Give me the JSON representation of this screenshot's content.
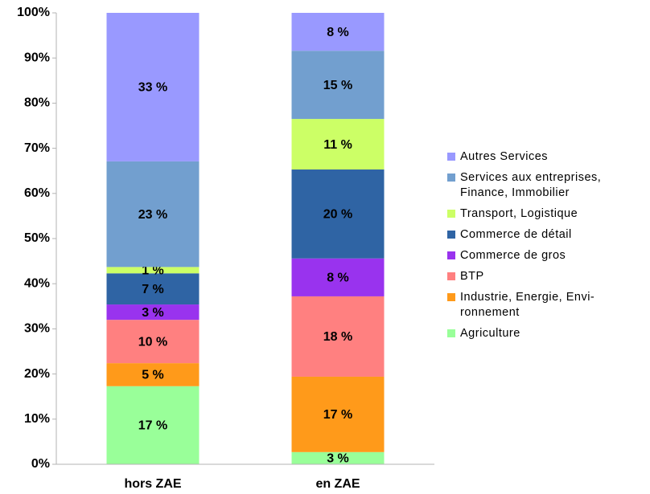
{
  "chart_data": {
    "type": "stacked_bar",
    "categories": [
      "hors ZAE",
      "en ZAE"
    ],
    "series": [
      {
        "name": "Agriculture",
        "color": "#99ff99",
        "values": [
          17.3,
          2.7
        ],
        "value_labels": [
          "17 %",
          "3 %"
        ]
      },
      {
        "name": "Industrie, Energie, Envi-\nronnement",
        "color": "#ff9a1a",
        "values": [
          5.1,
          16.7
        ],
        "value_labels": [
          "5 %",
          "17 %"
        ]
      },
      {
        "name": "BTP",
        "color": "#ff8080",
        "values": [
          9.6,
          17.8
        ],
        "value_labels": [
          "10 %",
          "18 %"
        ]
      },
      {
        "name": "Commerce de gros",
        "color": "#9933ee",
        "values": [
          3.4,
          8.4
        ],
        "value_labels": [
          "3 %",
          "8 %"
        ]
      },
      {
        "name": "Commerce de détail",
        "color": "#2f64a4",
        "values": [
          6.9,
          19.7
        ],
        "value_labels": [
          "7 %",
          "20 %"
        ]
      },
      {
        "name": "Transport, Logistique",
        "color": "#ccff66",
        "values": [
          1.4,
          11.2
        ],
        "value_labels": [
          "1 %",
          "11 %"
        ]
      },
      {
        "name": "Services aux entreprises,\nFinance, Immobilier",
        "color": "#729fcf",
        "values": [
          23.4,
          15.1
        ],
        "value_labels": [
          "23 %",
          "15 %"
        ]
      },
      {
        "name": "Autres Services",
        "color": "#9999ff",
        "values": [
          32.9,
          8.4
        ],
        "value_labels": [
          "33 %",
          "8 %"
        ]
      }
    ],
    "ylim": [
      0,
      100
    ],
    "yticks": [
      {
        "value": 0,
        "label": "0%"
      },
      {
        "value": 10,
        "label": "10%"
      },
      {
        "value": 20,
        "label": "20%"
      },
      {
        "value": 30,
        "label": "30%"
      },
      {
        "value": 40,
        "label": "40%"
      },
      {
        "value": 50,
        "label": "50%"
      },
      {
        "value": 60,
        "label": "60%"
      },
      {
        "value": 70,
        "label": "70%"
      },
      {
        "value": 80,
        "label": "80%"
      },
      {
        "value": 90,
        "label": "90%"
      },
      {
        "value": 100,
        "label": "100%"
      }
    ],
    "grid": false,
    "legend": "right"
  }
}
